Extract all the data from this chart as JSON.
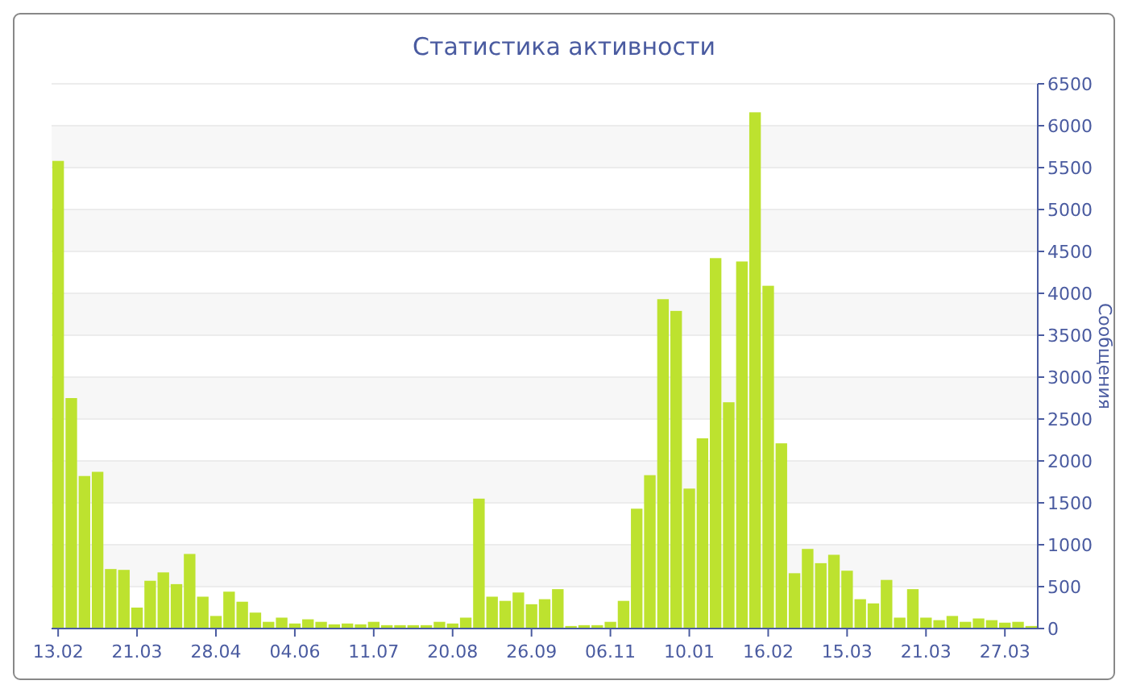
{
  "chart_data": {
    "type": "bar",
    "title": "Статистика активности",
    "ylabel": "Сообщения",
    "color": "#bde22f",
    "categories": [
      "13.02",
      null,
      null,
      null,
      null,
      null,
      "21.03",
      null,
      null,
      null,
      null,
      null,
      "28.04",
      null,
      null,
      null,
      null,
      null,
      "04.06",
      null,
      null,
      null,
      null,
      null,
      "11.07",
      null,
      null,
      null,
      null,
      null,
      "20.08",
      null,
      null,
      null,
      null,
      null,
      "26.09",
      null,
      null,
      null,
      null,
      null,
      "06.11",
      null,
      null,
      null,
      null,
      null,
      "10.01",
      null,
      null,
      null,
      null,
      null,
      "16.02",
      null,
      null,
      null,
      null,
      null,
      "15.03",
      null,
      null,
      null,
      null,
      null,
      "21.03",
      null,
      null,
      null,
      null,
      null,
      "27.03",
      null,
      null
    ],
    "values": [
      5580,
      2750,
      1820,
      1870,
      710,
      700,
      250,
      570,
      670,
      530,
      890,
      380,
      150,
      440,
      320,
      190,
      80,
      130,
      60,
      110,
      80,
      50,
      60,
      50,
      80,
      40,
      40,
      40,
      40,
      80,
      60,
      130,
      1550,
      380,
      330,
      430,
      290,
      350,
      470,
      30,
      40,
      40,
      80,
      330,
      1430,
      1830,
      3930,
      3790,
      1670,
      2270,
      4420,
      2700,
      4380,
      6160,
      4090,
      2210,
      660,
      950,
      780,
      880,
      690,
      350,
      300,
      580,
      130,
      470,
      130,
      100,
      150,
      80,
      120,
      100,
      70,
      80,
      30
    ],
    "ylim": [
      0,
      6500
    ],
    "yticks": [
      0,
      500,
      1000,
      1500,
      2000,
      2500,
      3000,
      3500,
      4000,
      4500,
      5000,
      5500,
      6000,
      6500
    ],
    "grid": "y"
  }
}
